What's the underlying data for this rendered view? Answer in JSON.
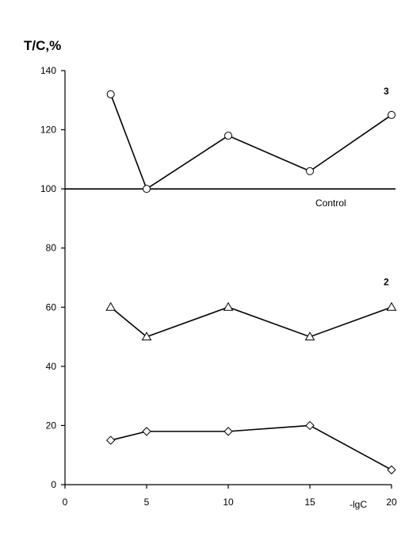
{
  "chart_data": {
    "type": "line",
    "ylabel": "T/C,%",
    "xlabel": "-lgC",
    "xlim": [
      0,
      20
    ],
    "ylim": [
      0,
      140
    ],
    "xticks": [
      0,
      5,
      10,
      15,
      20
    ],
    "yticks": [
      0,
      20,
      40,
      60,
      80,
      100,
      120,
      140
    ],
    "grid": false,
    "reference_line": {
      "y": 100,
      "label": "Control"
    },
    "series": [
      {
        "label": "3",
        "marker": "circle",
        "points": [
          [
            2.8,
            132
          ],
          [
            5,
            100
          ],
          [
            10,
            118
          ],
          [
            15,
            106
          ],
          [
            20,
            125
          ]
        ]
      },
      {
        "label": "2",
        "marker": "triangle",
        "points": [
          [
            2.8,
            60
          ],
          [
            5,
            50
          ],
          [
            10,
            60
          ],
          [
            15,
            50
          ],
          [
            20,
            60
          ]
        ]
      },
      {
        "label": "",
        "marker": "diamond",
        "points": [
          [
            2.8,
            15
          ],
          [
            5,
            18
          ],
          [
            10,
            18
          ],
          [
            15,
            20
          ],
          [
            20,
            5
          ]
        ]
      }
    ]
  }
}
